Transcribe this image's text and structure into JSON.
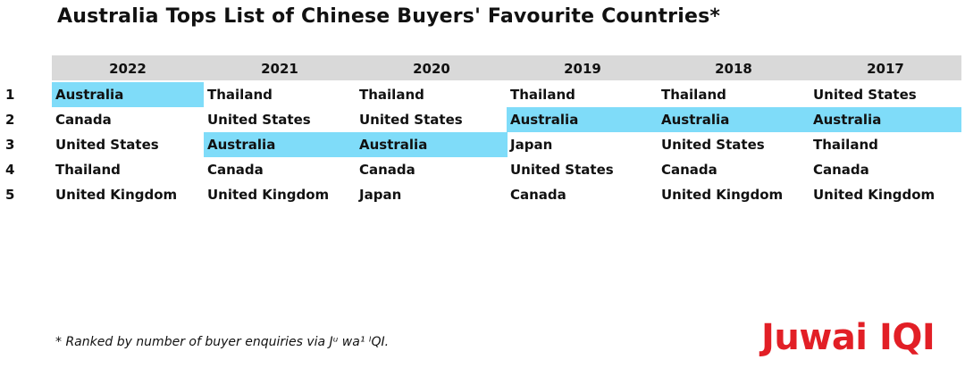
{
  "title": "Australia Tops List of Chinese Buyers' Favourite Countries*",
  "footnote": "* Ranked by number of buyer enquiries via Jᵘ wa¹ ᴵQI.",
  "logo_text": "Juwai IQI",
  "colors": {
    "highlight": "#7fdcf9",
    "header_bg": "#d9d9d9",
    "logo_red": "#e21f26",
    "text": "#111111"
  },
  "chart_data": {
    "type": "table",
    "highlight_value": "Australia",
    "columns": [
      "2022",
      "2021",
      "2020",
      "2019",
      "2018",
      "2017"
    ],
    "ranks": [
      "1",
      "2",
      "3",
      "4",
      "5"
    ],
    "rows": [
      [
        "Australia",
        "Thailand",
        "Thailand",
        "Thailand",
        "Thailand",
        "United States"
      ],
      [
        "Canada",
        "United States",
        "United States",
        "Australia",
        "Australia",
        "Australia"
      ],
      [
        "United States",
        "Australia",
        "Australia",
        "Japan",
        "United States",
        "Thailand"
      ],
      [
        "Thailand",
        "Canada",
        "Canada",
        "United States",
        "Canada",
        "Canada"
      ],
      [
        "United Kingdom",
        "United Kingdom",
        "Japan",
        "Canada",
        "United Kingdom",
        "United Kingdom"
      ]
    ]
  }
}
